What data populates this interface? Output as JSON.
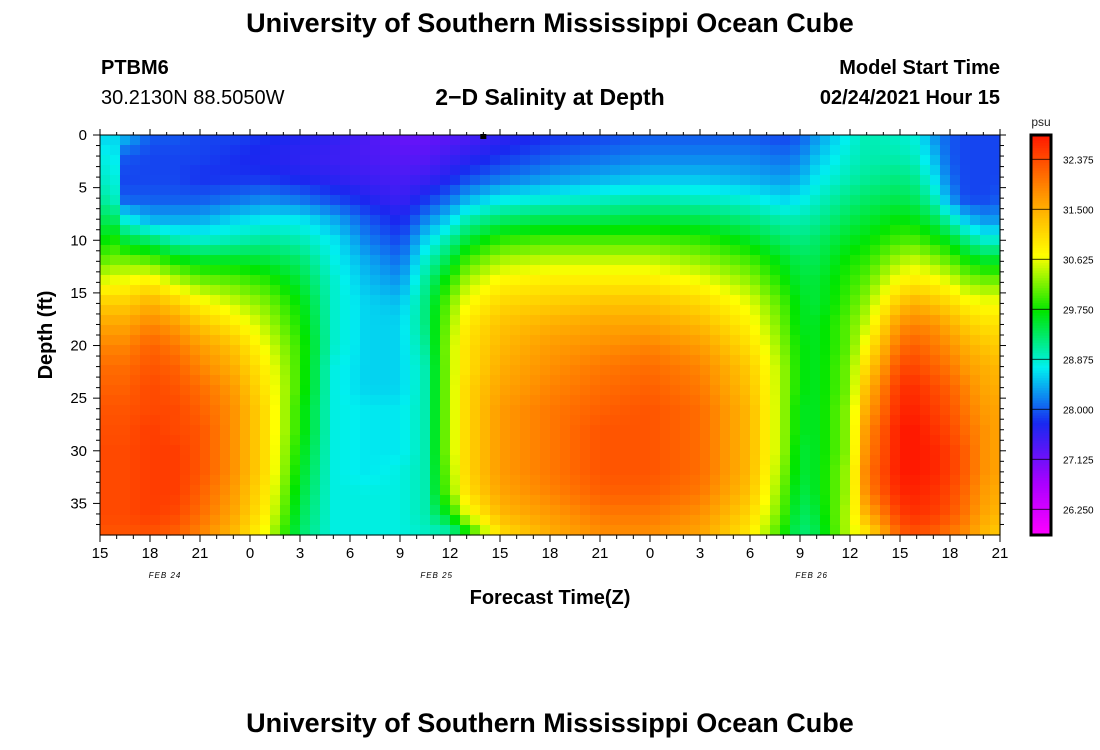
{
  "page": {
    "title_top": "University of Southern Mississippi Ocean Cube",
    "title_bottom": "University of Southern Mississippi Ocean Cube",
    "station_id": "PTBM6",
    "station_coords": "30.2130N 88.5050W",
    "model_label": "Model Start Time",
    "model_time": "02/24/2021 Hour 15"
  },
  "chart_data": {
    "type": "heatmap",
    "title": "2−D Salinity at Depth",
    "xlabel": "Forecast Time(Z)",
    "ylabel": "Depth (ft)",
    "x_hours": [
      0,
      3,
      6,
      9,
      12,
      15,
      18,
      21,
      24,
      27,
      30,
      33,
      36,
      39,
      42,
      45,
      48,
      51,
      54
    ],
    "x_tick_labels": [
      "15",
      "18",
      "21",
      "0",
      "3",
      "6",
      "9",
      "12",
      "15",
      "18",
      "21",
      "0",
      "3",
      "6",
      "9",
      "12",
      "15",
      "18",
      "21"
    ],
    "date_labels": [
      {
        "hour": 3.9,
        "label": "FEB 24"
      },
      {
        "hour": 20.2,
        "label": "FEB 25"
      },
      {
        "hour": 42.7,
        "label": "FEB 26"
      }
    ],
    "ylim": [
      0,
      38
    ],
    "y_ticks": [
      0,
      5,
      10,
      15,
      20,
      25,
      30,
      35
    ],
    "colorbar": {
      "unit": "psu",
      "range": [
        25.8,
        32.8
      ],
      "tick_values": [
        26.25,
        27.125,
        28.0,
        28.875,
        29.75,
        30.625,
        31.5,
        32.375
      ],
      "tick_labels": [
        "26.250",
        "27.125",
        "28.000",
        "28.875",
        "29.750",
        "30.625",
        "31.500",
        "32.375"
      ]
    },
    "marker": {
      "hour": 23,
      "depth": 0
    },
    "salinity_psu": {
      "hours": [
        0,
        1,
        1.5,
        3,
        4.5,
        6,
        8,
        10,
        12,
        14,
        16,
        18,
        19.5,
        21,
        22,
        24,
        27,
        30,
        33,
        36,
        39,
        41,
        42,
        43,
        45,
        46,
        48,
        49,
        50,
        51,
        52,
        53,
        54
      ],
      "depths": [
        0,
        2,
        4,
        6,
        8,
        10,
        12,
        14,
        16,
        18,
        20,
        22,
        24,
        26,
        28,
        30,
        32,
        34,
        36,
        38
      ],
      "values": [
        [
          28.6,
          28.8,
          28.9,
          29.1,
          29.4,
          29.7,
          30.1,
          30.6,
          31.2,
          31.6,
          31.9,
          32.1,
          32.2,
          32.3,
          32.35,
          32.4,
          32.4,
          32.4,
          32.4,
          32.3
        ],
        [
          28.6,
          28.7,
          28.8,
          28.9,
          29.3,
          29.8,
          30.2,
          30.7,
          31.2,
          31.6,
          31.9,
          32.1,
          32.2,
          32.3,
          32.35,
          32.4,
          32.4,
          32.4,
          32.4,
          32.3
        ],
        [
          28.5,
          28.0,
          27.9,
          28.0,
          28.8,
          29.5,
          30.2,
          30.7,
          31.2,
          31.6,
          31.9,
          32.1,
          32.2,
          32.3,
          32.35,
          32.4,
          32.4,
          32.4,
          32.4,
          32.3
        ],
        [
          28.0,
          27.9,
          27.9,
          28.0,
          28.4,
          29.3,
          30.1,
          30.9,
          31.5,
          31.9,
          32.2,
          32.3,
          32.4,
          32.4,
          32.5,
          32.5,
          32.5,
          32.5,
          32.5,
          32.3
        ],
        [
          28.0,
          27.9,
          27.9,
          28.0,
          28.4,
          29.0,
          29.8,
          30.5,
          31.2,
          31.7,
          32.0,
          32.2,
          32.3,
          32.4,
          32.4,
          32.5,
          32.5,
          32.5,
          32.4,
          32.2
        ],
        [
          27.9,
          27.9,
          27.8,
          28.0,
          28.4,
          28.9,
          29.6,
          30.2,
          30.8,
          31.3,
          31.7,
          31.9,
          32.1,
          32.2,
          32.3,
          32.3,
          32.3,
          32.2,
          32.1,
          31.9
        ],
        [
          27.9,
          27.8,
          27.8,
          28.1,
          28.6,
          29.0,
          29.6,
          30.1,
          30.5,
          30.9,
          31.3,
          31.5,
          31.7,
          31.8,
          31.8,
          31.8,
          31.8,
          31.7,
          31.6,
          31.4
        ],
        [
          27.8,
          27.7,
          27.8,
          28.2,
          28.7,
          29.1,
          29.5,
          29.9,
          30.2,
          30.4,
          30.6,
          30.8,
          30.9,
          31.0,
          31.0,
          31.0,
          31.0,
          30.9,
          30.8,
          30.6
        ],
        [
          27.7,
          27.6,
          27.7,
          28.1,
          28.7,
          29.0,
          29.3,
          29.5,
          29.7,
          29.8,
          29.9,
          29.9,
          29.9,
          29.8,
          29.8,
          29.7,
          29.6,
          29.5,
          29.4,
          29.3
        ],
        [
          27.6,
          27.5,
          27.6,
          27.9,
          28.4,
          28.7,
          28.8,
          28.9,
          28.9,
          28.9,
          28.9,
          28.8,
          28.8,
          28.8,
          28.8,
          28.8,
          28.8,
          28.8,
          28.8,
          28.8
        ],
        [
          27.4,
          27.4,
          27.5,
          27.7,
          28.0,
          28.2,
          28.4,
          28.5,
          28.6,
          28.6,
          28.6,
          28.6,
          28.6,
          28.7,
          28.7,
          28.7,
          28.7,
          28.8,
          28.8,
          28.8
        ],
        [
          27.2,
          27.3,
          27.4,
          27.5,
          27.7,
          27.9,
          28.1,
          28.3,
          28.5,
          28.6,
          28.6,
          28.6,
          28.6,
          28.7,
          28.7,
          28.7,
          28.8,
          28.8,
          28.8,
          28.8
        ],
        [
          27.2,
          27.3,
          27.5,
          27.8,
          28.2,
          28.6,
          28.9,
          29.1,
          29.2,
          29.2,
          29.1,
          29.0,
          29.0,
          29.0,
          29.0,
          29.0,
          29.0,
          29.0,
          29.0,
          28.9
        ],
        [
          27.3,
          27.5,
          27.7,
          28.1,
          28.6,
          29.1,
          29.5,
          29.9,
          30.2,
          30.3,
          30.4,
          30.4,
          30.4,
          30.4,
          30.4,
          30.4,
          30.3,
          30.2,
          29.7,
          28.9
        ],
        [
          27.4,
          27.6,
          27.9,
          28.4,
          29.0,
          29.5,
          30.0,
          30.4,
          30.7,
          30.9,
          31.0,
          31.0,
          31.1,
          31.1,
          31.1,
          31.1,
          31.1,
          31.0,
          30.6,
          29.6
        ],
        [
          27.6,
          27.8,
          28.1,
          28.7,
          29.3,
          29.9,
          30.4,
          30.8,
          31.1,
          31.3,
          31.4,
          31.5,
          31.6,
          31.7,
          31.7,
          31.7,
          31.7,
          31.6,
          31.4,
          31.0
        ],
        [
          27.8,
          28.0,
          28.3,
          28.8,
          29.4,
          30.0,
          30.5,
          30.9,
          31.2,
          31.5,
          31.7,
          31.8,
          31.9,
          32.0,
          32.0,
          32.0,
          32.0,
          31.9,
          31.7,
          31.5
        ],
        [
          27.9,
          28.1,
          28.4,
          28.9,
          29.4,
          30.0,
          30.5,
          30.9,
          31.3,
          31.6,
          31.8,
          32.0,
          32.1,
          32.2,
          32.3,
          32.3,
          32.3,
          32.2,
          32.0,
          31.8
        ],
        [
          28.0,
          28.2,
          28.5,
          29.0,
          29.5,
          30.0,
          30.5,
          30.9,
          31.3,
          31.6,
          31.9,
          32.1,
          32.2,
          32.3,
          32.3,
          32.3,
          32.3,
          32.2,
          32.0,
          31.8
        ],
        [
          28.0,
          28.2,
          28.5,
          28.9,
          29.4,
          29.9,
          30.3,
          30.7,
          31.1,
          31.4,
          31.7,
          31.9,
          32.0,
          32.1,
          32.1,
          32.1,
          32.1,
          32.0,
          31.8,
          31.6
        ],
        [
          28.0,
          28.2,
          28.4,
          28.8,
          29.2,
          29.6,
          30.0,
          30.3,
          30.6,
          30.8,
          31.0,
          31.2,
          31.3,
          31.4,
          31.4,
          31.4,
          31.4,
          31.3,
          31.1,
          30.9
        ],
        [
          27.9,
          28.1,
          28.3,
          28.6,
          29.0,
          29.3,
          29.6,
          29.8,
          30.0,
          30.1,
          30.2,
          30.3,
          30.3,
          30.3,
          30.3,
          30.3,
          30.2,
          30.1,
          30.0,
          29.8
        ],
        [
          28.0,
          28.2,
          28.4,
          28.7,
          29.0,
          29.2,
          29.4,
          29.5,
          29.6,
          29.6,
          29.7,
          29.7,
          29.7,
          29.6,
          29.6,
          29.5,
          29.5,
          29.4,
          29.3,
          29.2
        ],
        [
          28.3,
          28.5,
          28.7,
          28.9,
          29.1,
          29.3,
          29.4,
          29.5,
          29.5,
          29.6,
          29.6,
          29.6,
          29.6,
          29.6,
          29.6,
          29.6,
          29.6,
          29.6,
          29.5,
          29.4
        ],
        [
          28.8,
          28.9,
          29.0,
          29.2,
          29.4,
          29.6,
          29.8,
          29.9,
          30.0,
          30.1,
          30.1,
          30.2,
          30.2,
          30.3,
          30.3,
          30.3,
          30.4,
          30.4,
          30.5,
          30.5
        ],
        [
          29.0,
          29.0,
          29.1,
          29.3,
          29.5,
          29.7,
          29.9,
          30.1,
          30.3,
          30.5,
          30.8,
          31.1,
          31.4,
          31.6,
          31.8,
          31.9,
          32.0,
          31.9,
          31.5,
          30.9
        ],
        [
          28.9,
          29.0,
          29.2,
          29.4,
          29.7,
          30.0,
          30.4,
          30.8,
          31.3,
          31.8,
          32.1,
          32.4,
          32.6,
          32.7,
          32.8,
          32.8,
          32.8,
          32.7,
          32.5,
          32.2
        ],
        [
          28.8,
          28.9,
          29.1,
          29.3,
          29.6,
          30.0,
          30.5,
          30.9,
          31.5,
          31.9,
          32.2,
          32.4,
          32.6,
          32.7,
          32.8,
          32.8,
          32.8,
          32.7,
          32.6,
          32.3
        ],
        [
          28.3,
          28.5,
          28.7,
          29.0,
          29.4,
          29.8,
          30.3,
          30.8,
          31.3,
          31.8,
          32.0,
          32.2,
          32.4,
          32.5,
          32.6,
          32.7,
          32.7,
          32.6,
          32.5,
          32.2
        ],
        [
          28.0,
          28.0,
          28.1,
          28.3,
          29.0,
          29.6,
          30.1,
          30.6,
          31.1,
          31.5,
          31.8,
          32.0,
          32.2,
          32.3,
          32.4,
          32.5,
          32.5,
          32.4,
          32.3,
          32.0
        ],
        [
          27.9,
          27.9,
          27.9,
          27.9,
          28.5,
          29.2,
          29.8,
          30.3,
          30.8,
          31.2,
          31.5,
          31.7,
          31.9,
          32.0,
          32.1,
          32.2,
          32.2,
          32.1,
          32.0,
          31.8
        ],
        [
          27.9,
          27.9,
          27.9,
          27.9,
          28.3,
          28.9,
          29.6,
          30.2,
          30.7,
          31.0,
          31.3,
          31.5,
          31.6,
          31.7,
          31.8,
          31.8,
          31.8,
          31.7,
          31.6,
          31.4
        ],
        [
          27.9,
          27.9,
          27.9,
          28.0,
          28.3,
          28.9,
          29.6,
          30.2,
          30.7,
          31.0,
          31.2,
          31.4,
          31.5,
          31.6,
          31.6,
          31.6,
          31.6,
          31.5,
          31.4,
          31.2
        ]
      ]
    }
  }
}
